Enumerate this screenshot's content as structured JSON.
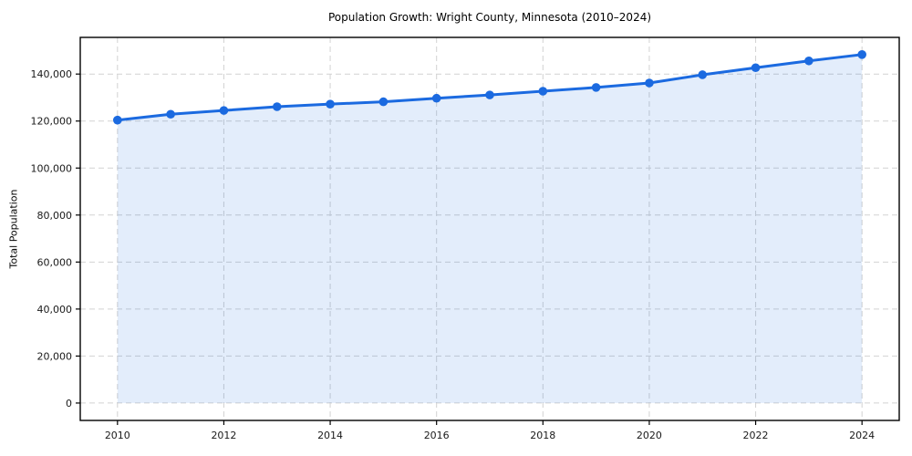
{
  "chart_data": {
    "type": "line",
    "title": "Population Growth: Wright County, Minnesota (2010–2024)",
    "xlabel": "",
    "ylabel": "Total Population",
    "x": [
      2010,
      2011,
      2012,
      2013,
      2014,
      2015,
      2016,
      2017,
      2018,
      2019,
      2020,
      2021,
      2022,
      2023,
      2024
    ],
    "series": [
      {
        "name": "Total Population",
        "values": [
          120400,
          122900,
          124500,
          126100,
          127200,
          128200,
          129700,
          131100,
          132700,
          134300,
          136200,
          139700,
          142700,
          145600,
          148300
        ]
      }
    ],
    "xticks": [
      2010,
      2012,
      2014,
      2016,
      2018,
      2020,
      2022,
      2024
    ],
    "yticks": [
      0,
      20000,
      40000,
      60000,
      80000,
      100000,
      120000,
      140000
    ],
    "xlim": [
      2009.3,
      2024.7
    ],
    "ylim": [
      -7400,
      155600
    ],
    "grid": "dashed",
    "legend": "none",
    "area_fill_to_zero": true,
    "colors": {
      "line": "#1b6ae0",
      "marker": "#1b6ae0",
      "area_fill": "rgba(27,106,224,0.12)",
      "grid": "#d2d2d2",
      "spine": "#000000",
      "tick_text": "#1a1a1a",
      "background": "#ffffff"
    }
  }
}
